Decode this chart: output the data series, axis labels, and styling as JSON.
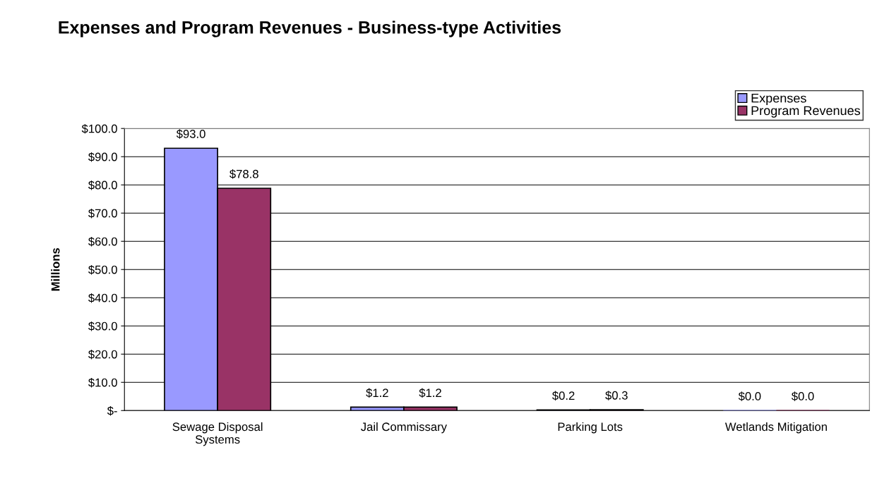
{
  "chart_data": {
    "type": "bar",
    "title": "Expenses and Program Revenues - Business-type Activities",
    "ylabel": "Millions",
    "categories": [
      "Sewage Disposal\nSystems",
      "Jail Commissary",
      "Parking Lots",
      "Wetlands Mitigation"
    ],
    "series": [
      {
        "name": "Expenses",
        "color": "#9999ff",
        "values": [
          93.0,
          1.2,
          0.2,
          0.0
        ],
        "value_labels": [
          "$93.0",
          "$1.2",
          "$0.2",
          "$0.0"
        ]
      },
      {
        "name": "Program Revenues",
        "color": "#993366",
        "values": [
          78.8,
          1.2,
          0.3,
          0.0
        ],
        "value_labels": [
          "$78.8",
          "$1.2",
          "$0.3",
          "$0.0"
        ]
      }
    ],
    "ylim": [
      0,
      100
    ],
    "yticks": [
      {
        "value": 0,
        "label": "$-"
      },
      {
        "value": 10,
        "label": "$10.0"
      },
      {
        "value": 20,
        "label": "$20.0"
      },
      {
        "value": 30,
        "label": "$30.0"
      },
      {
        "value": 40,
        "label": "$40.0"
      },
      {
        "value": 50,
        "label": "$50.0"
      },
      {
        "value": 60,
        "label": "$60.0"
      },
      {
        "value": 70,
        "label": "$70.0"
      },
      {
        "value": 80,
        "label": "$80.0"
      },
      {
        "value": 90,
        "label": "$90.0"
      },
      {
        "value": 100,
        "label": "$100.0"
      }
    ],
    "grid": "y",
    "legend": "top right"
  }
}
